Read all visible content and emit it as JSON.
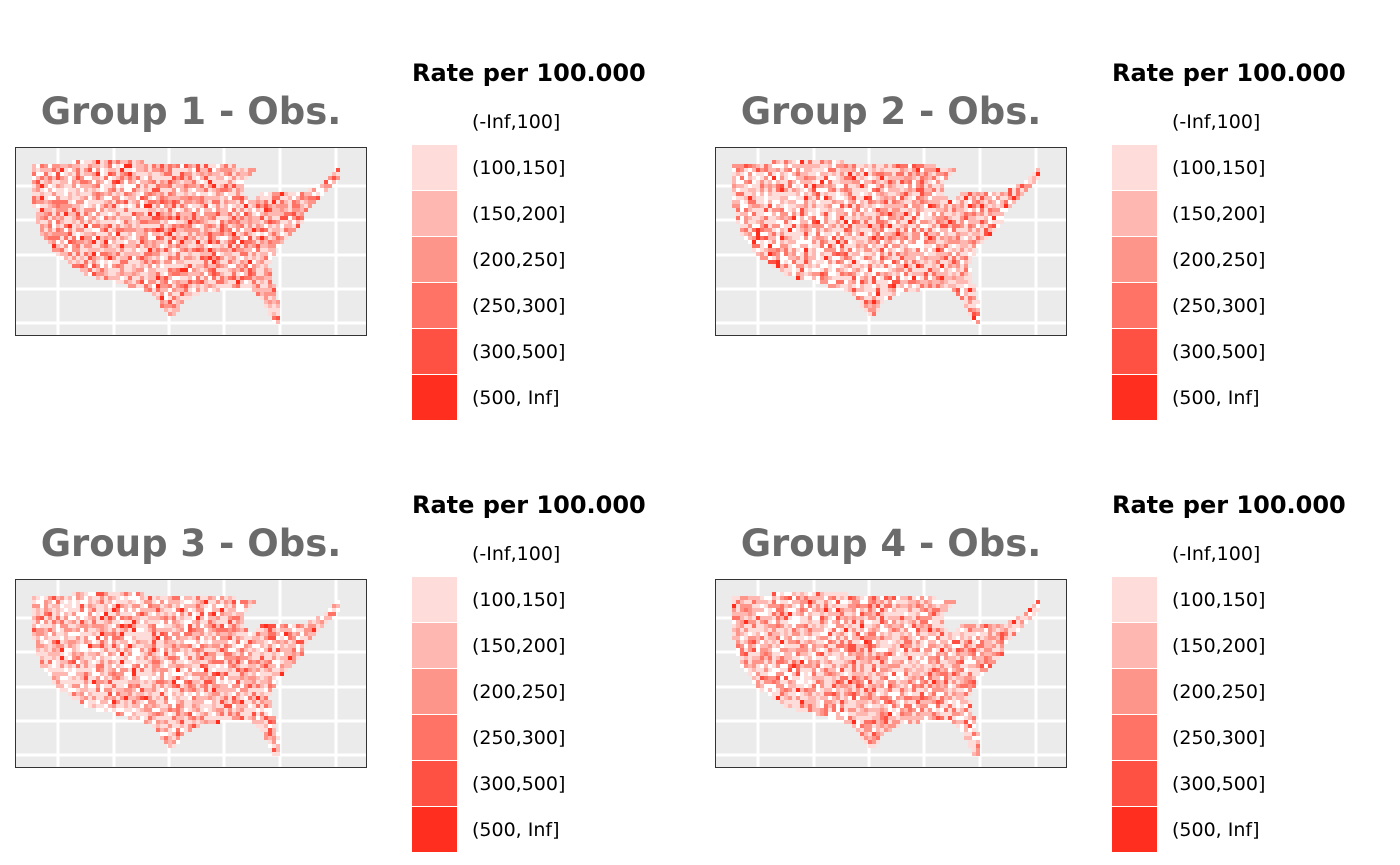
{
  "legend_title": "Rate per 100.000",
  "legend_items": [
    {
      "label": "(-Inf,100]",
      "color": "#ffffff"
    },
    {
      "label": "(100,150]",
      "color": "#fedcda"
    },
    {
      "label": "(150,200]",
      "color": "#feb8b1"
    },
    {
      "label": "(200,250]",
      "color": "#fe958a"
    },
    {
      "label": "(250,300]",
      "color": "#ff7366"
    },
    {
      "label": "(300,500]",
      "color": "#ff5143"
    },
    {
      "label": "(500, Inf]",
      "color": "#ff2e1f"
    }
  ],
  "maps": [
    {
      "title": "Group 1 - Obs.",
      "weights": [
        0.08,
        0.24,
        0.26,
        0.2,
        0.12,
        0.07,
        0.03
      ]
    },
    {
      "title": "Group 2 - Obs.",
      "weights": [
        0.14,
        0.26,
        0.24,
        0.17,
        0.1,
        0.06,
        0.03
      ]
    },
    {
      "title": "Group 3 - Obs.",
      "weights": [
        0.13,
        0.3,
        0.25,
        0.16,
        0.09,
        0.05,
        0.02
      ]
    },
    {
      "title": "Group 4 - Obs.",
      "weights": [
        0.12,
        0.27,
        0.25,
        0.18,
        0.1,
        0.06,
        0.02
      ]
    }
  ],
  "colors": {
    "panel_bg": "#ebebeb",
    "grid": "#ffffff",
    "title_gray": "#6b6b6b"
  }
}
